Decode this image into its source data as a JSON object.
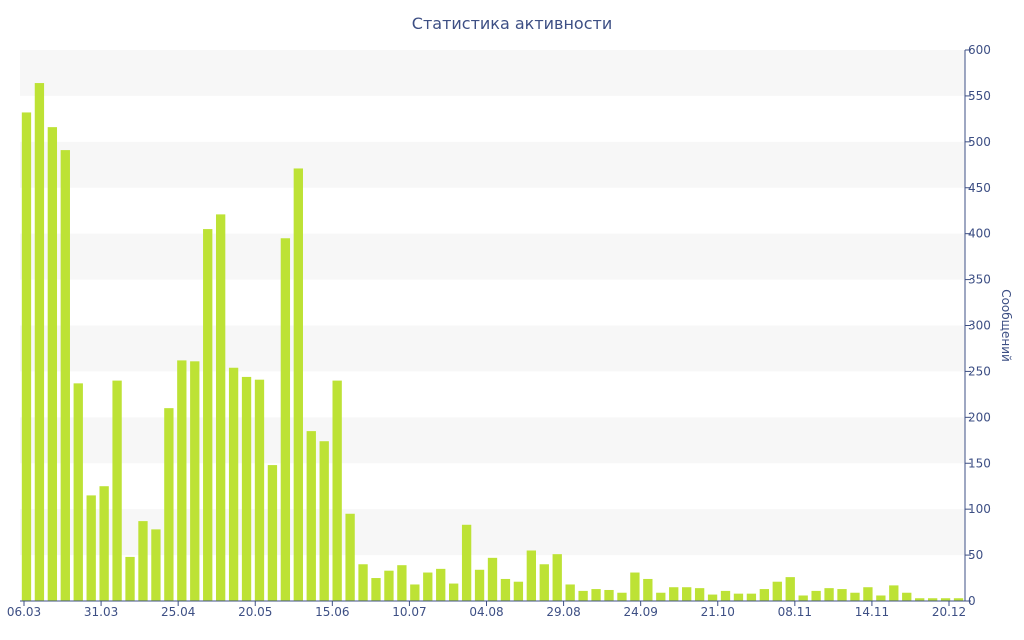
{
  "chart_data": {
    "type": "bar",
    "title": "Статистика активности",
    "ylabel": "Сообщений",
    "ylim": [
      0,
      600
    ],
    "y_ticks": [
      0,
      50,
      100,
      150,
      200,
      250,
      300,
      350,
      400,
      450,
      500,
      550,
      600
    ],
    "y_axis_position": "right",
    "grid": "alternating horizontal bands",
    "x_tick_labels": [
      "06.03",
      "31.03",
      "25.04",
      "20.05",
      "15.06",
      "10.07",
      "04.08",
      "29.08",
      "24.09",
      "21.10",
      "08.11",
      "14.11",
      "20.12"
    ],
    "values": [
      532,
      564,
      516,
      491,
      237,
      115,
      125,
      240,
      48,
      87,
      78,
      210,
      262,
      261,
      405,
      421,
      254,
      244,
      241,
      148,
      395,
      471,
      185,
      174,
      240,
      95,
      40,
      25,
      33,
      39,
      18,
      31,
      35,
      19,
      83,
      34,
      47,
      24,
      21,
      55,
      40,
      51,
      18,
      11,
      13,
      12,
      9,
      31,
      24,
      9,
      15,
      15,
      14,
      7,
      11,
      8,
      8,
      13,
      21,
      26,
      6,
      11,
      14,
      13,
      9,
      15,
      6,
      17,
      9,
      3,
      3,
      3,
      3
    ],
    "colors": {
      "bar": "#bde235",
      "band": "#f7f7f7",
      "axis": "#3d4f84",
      "text": "#3d4f84"
    }
  }
}
